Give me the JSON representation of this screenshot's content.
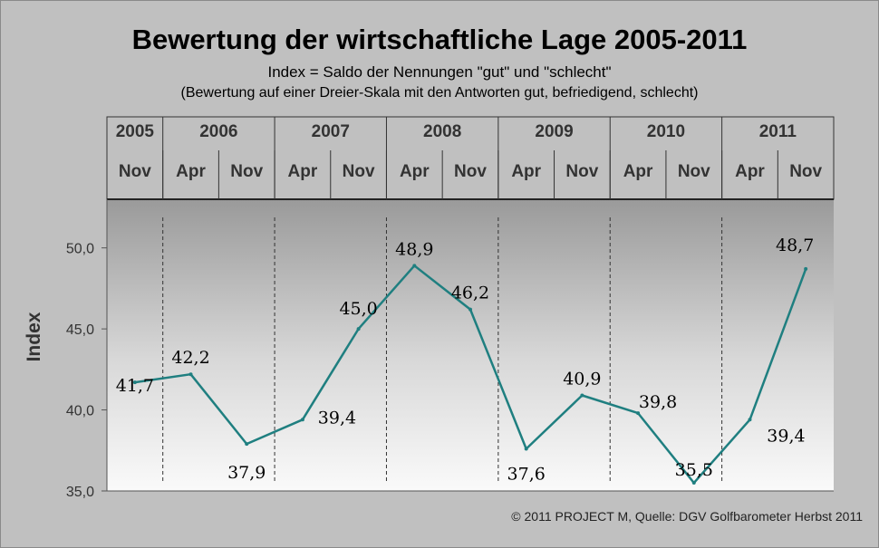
{
  "title": "Bewertung der wirtschaftliche Lage 2005-2011",
  "subtitle": "Index = Saldo der Nennungen \"gut\" und \"schlecht\"",
  "subtitle2": "(Bewertung auf einer Dreier-Skala mit den Antworten gut, befriedigend, schlecht)",
  "copyright": "© 2011 PROJECT M, Quelle: DGV Golfbarometer Herbst 2011",
  "chart_data": {
    "type": "line",
    "years": [
      {
        "label": "2005",
        "periods": 1
      },
      {
        "label": "2006",
        "periods": 2
      },
      {
        "label": "2007",
        "periods": 2
      },
      {
        "label": "2008",
        "periods": 2
      },
      {
        "label": "2009",
        "periods": 2
      },
      {
        "label": "2010",
        "periods": 2
      },
      {
        "label": "2011",
        "periods": 2
      }
    ],
    "categories": [
      "Nov",
      "Apr",
      "Nov",
      "Apr",
      "Nov",
      "Apr",
      "Nov",
      "Apr",
      "Nov",
      "Apr",
      "Nov",
      "Apr",
      "Nov"
    ],
    "values": [
      41.7,
      42.2,
      37.9,
      39.4,
      45.0,
      48.9,
      46.2,
      37.6,
      40.9,
      39.8,
      35.5,
      39.4,
      48.7
    ],
    "value_labels": [
      "41,7",
      "42,2",
      "37,9",
      "39,4",
      "45,0",
      "48,9",
      "46,2",
      "37,6",
      "40,9",
      "39,8",
      "35,5",
      "39,4",
      "48,7"
    ],
    "ylabel": "Index",
    "ylim": [
      35,
      53
    ],
    "yticks": [
      35,
      40,
      45,
      50
    ],
    "ytick_labels": [
      "35,0",
      "40,0",
      "45,0",
      "50,0"
    ],
    "line_color": "#1f7f80",
    "grid": false,
    "year_separators": "dashed"
  }
}
